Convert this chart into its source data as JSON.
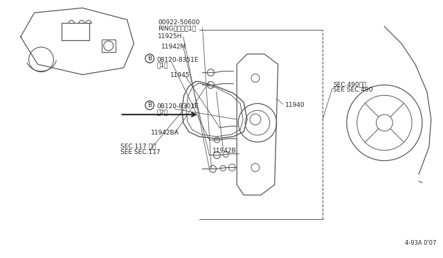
{
  "bg_color": "#ffffff",
  "line_color": "#555555",
  "dark_line": "#222222",
  "fig_width": 6.4,
  "fig_height": 3.72,
  "dpi": 100,
  "diagram_ref": "4-93A 0'07",
  "labels": {
    "part1": "00922-50600",
    "part1b": "RINGリング＜1＞",
    "part2": "11925H",
    "part3": "11942M",
    "part4_code": "08120-8351E",
    "part4_sub": "＜1＞",
    "part5": "11945",
    "part6_code": "0B120-8301E",
    "part6_sub": "＜2＞",
    "part7": "11942BA",
    "part8": "11940",
    "part9": "11942B",
    "sec490a": "SEC.490参照",
    "sec490b": "SEE SEC.490",
    "sec117a": "SEC.117 参照",
    "sec117b": "SEE SEC.117",
    "B_marker": "B"
  }
}
